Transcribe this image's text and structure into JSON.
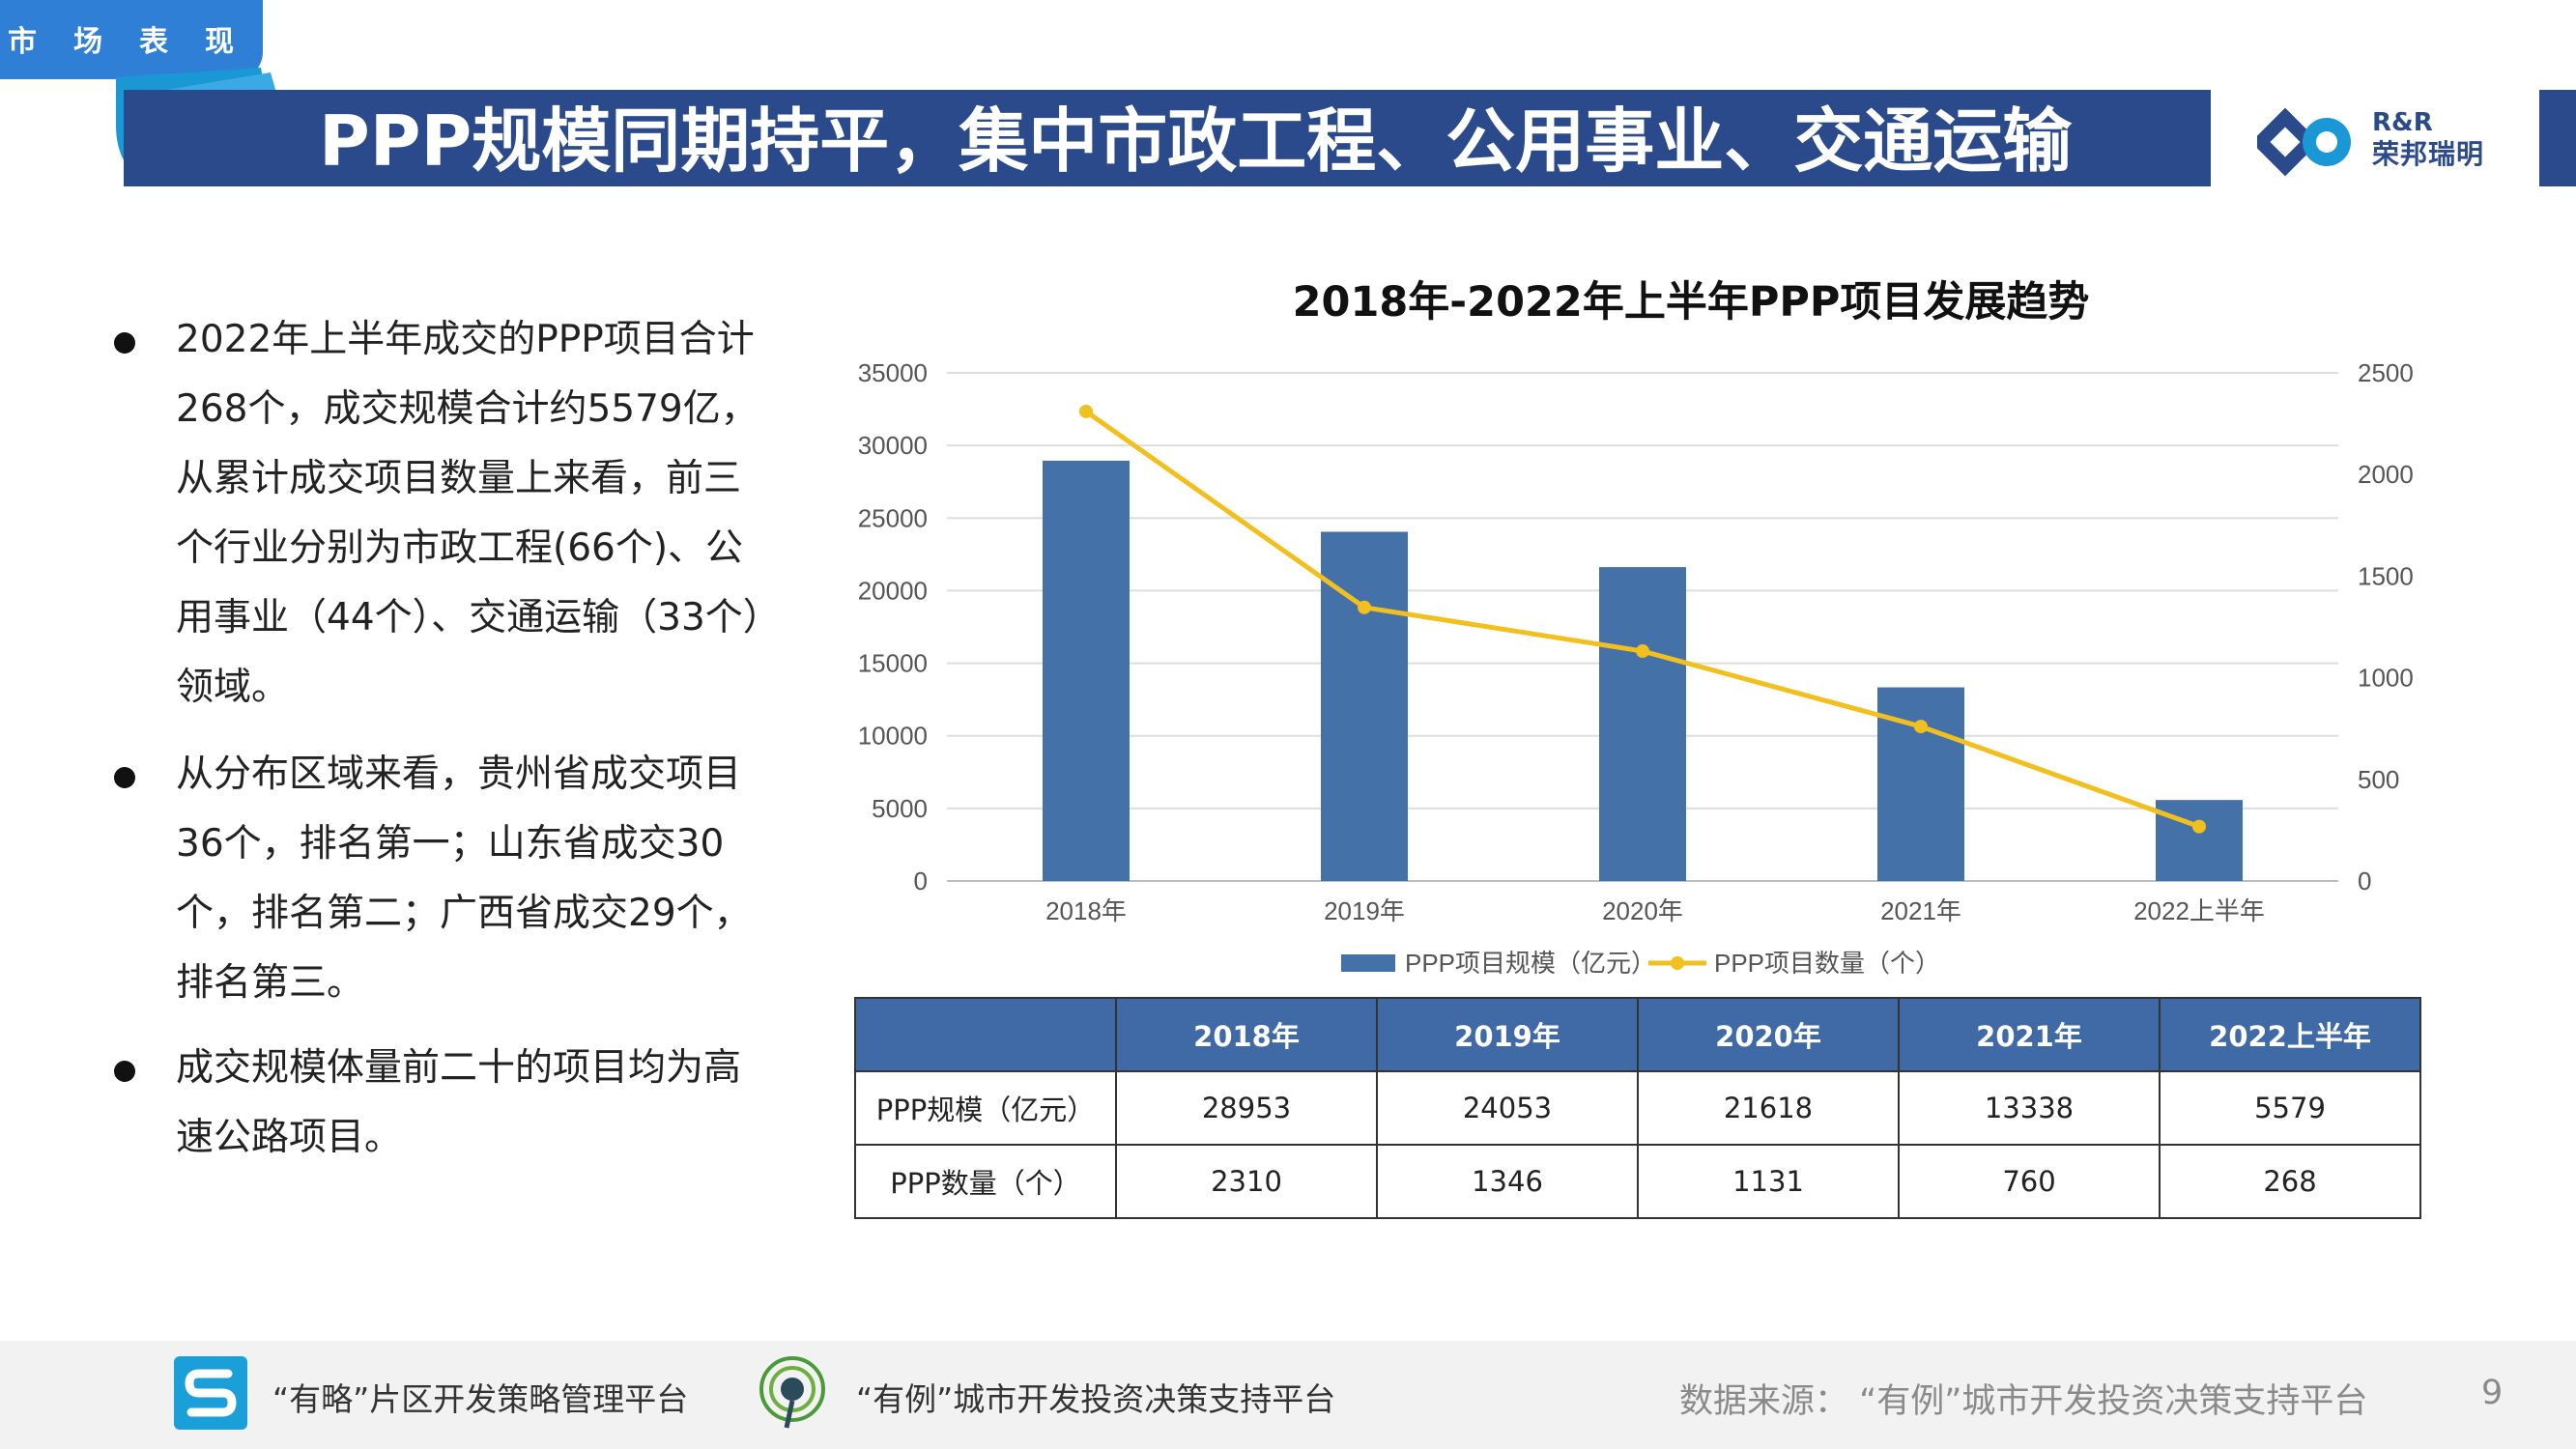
{
  "header": {
    "section_label": "市场表现",
    "title": "PPP规模同期持平，集中市政工程、公用事业、交通运输",
    "logo_top": "R&R",
    "logo_bottom": "荣邦瑞明"
  },
  "bullets": [
    "2022年上半年成交的PPP项目合计268个，成交规模合计约5579亿，从累计成交项目数量上来看，前三个行业分别为市政工程(66个)、公用事业（44个）、交通运输（33个）领域。",
    "从分布区域来看，贵州省成交项目36个，排名第一；山东省成交30个，排名第二；广西省成交29个，排名第三。",
    "成交规模体量前二十的项目均为高速公路项目。"
  ],
  "chart_data": {
    "type": "bar",
    "title": "2018年-2022年上半年PPP项目发展趋势",
    "categories": [
      "2018年",
      "2019年",
      "2020年",
      "2021年",
      "2022上半年"
    ],
    "series": [
      {
        "name": "PPP项目规模（亿元）",
        "type": "bar",
        "axis": "left",
        "color": "#4472a8",
        "values": [
          28953,
          24053,
          21618,
          13338,
          5579
        ]
      },
      {
        "name": "PPP项目数量（个）",
        "type": "line",
        "axis": "right",
        "color": "#f2c01e",
        "values": [
          2310,
          1346,
          1131,
          760,
          268
        ]
      }
    ],
    "y_left": {
      "min": 0,
      "max": 35000,
      "ticks": [
        0,
        5000,
        10000,
        15000,
        20000,
        25000,
        30000,
        35000
      ]
    },
    "y_right": {
      "min": 0,
      "max": 2500,
      "ticks": [
        0,
        500,
        1000,
        1500,
        2000,
        2500
      ]
    },
    "grid": true,
    "legend": "bottom"
  },
  "table": {
    "headers": [
      "",
      "2018年",
      "2019年",
      "2020年",
      "2021年",
      "2022上半年"
    ],
    "rows": [
      [
        "PPP规模（亿元）",
        "28953",
        "24053",
        "21618",
        "13338",
        "5579"
      ],
      [
        "PPP数量（个）",
        "2310",
        "1346",
        "1131",
        "760",
        "268"
      ]
    ]
  },
  "footer": {
    "platform1": "“有略”片区开发策略管理平台",
    "platform2": "“有例”城市开发投资决策支持平台",
    "source": "数据来源：  “有例”城市开发投资决策支持平台",
    "page": "9"
  }
}
